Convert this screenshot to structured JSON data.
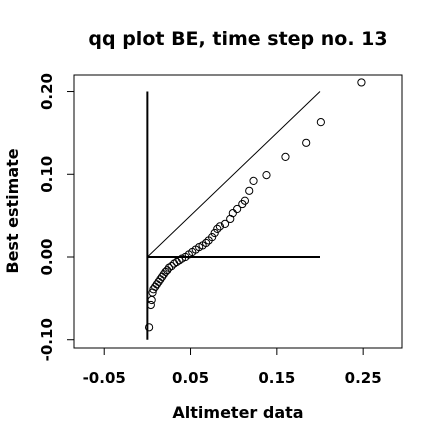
{
  "chart_data": {
    "type": "scatter",
    "title": "qq plot BE, time step no. 13",
    "xlabel": "Altimeter data",
    "ylabel": "Best estimate",
    "xlim": [
      -0.085,
      0.295
    ],
    "ylim": [
      -0.11,
      0.22
    ],
    "x_ticks": [
      -0.05,
      0.05,
      0.15,
      0.25
    ],
    "x_tick_labels": [
      "-0.05",
      "0.05",
      "0.15",
      "0.25"
    ],
    "y_ticks": [
      -0.1,
      0.0,
      0.1,
      0.2
    ],
    "y_tick_labels": [
      "-0.10",
      "0.00",
      "0.10",
      "0.20"
    ],
    "grid": false,
    "marker": "open-circle",
    "reference_lines": [
      {
        "from": [
          0.0,
          0.0
        ],
        "to": [
          0.2,
          0.2
        ]
      },
      {
        "from": [
          0.0,
          0.0
        ],
        "to": [
          0.2,
          0.0
        ]
      },
      {
        "from": [
          0.0,
          -0.1
        ],
        "to": [
          0.0,
          0.2
        ]
      }
    ],
    "points": [
      {
        "x": 0.002,
        "y": -0.085
      },
      {
        "x": 0.004,
        "y": -0.058
      },
      {
        "x": 0.005,
        "y": -0.052
      },
      {
        "x": 0.006,
        "y": -0.043
      },
      {
        "x": 0.007,
        "y": -0.039
      },
      {
        "x": 0.009,
        "y": -0.036
      },
      {
        "x": 0.011,
        "y": -0.033
      },
      {
        "x": 0.013,
        "y": -0.03
      },
      {
        "x": 0.015,
        "y": -0.027
      },
      {
        "x": 0.017,
        "y": -0.024
      },
      {
        "x": 0.019,
        "y": -0.021
      },
      {
        "x": 0.021,
        "y": -0.018
      },
      {
        "x": 0.023,
        "y": -0.016
      },
      {
        "x": 0.025,
        "y": -0.013
      },
      {
        "x": 0.028,
        "y": -0.011
      },
      {
        "x": 0.031,
        "y": -0.008
      },
      {
        "x": 0.034,
        "y": -0.006
      },
      {
        "x": 0.037,
        "y": -0.004
      },
      {
        "x": 0.04,
        "y": -0.002
      },
      {
        "x": 0.044,
        "y": 0.0
      },
      {
        "x": 0.048,
        "y": 0.003
      },
      {
        "x": 0.052,
        "y": 0.006
      },
      {
        "x": 0.056,
        "y": 0.009
      },
      {
        "x": 0.06,
        "y": 0.012
      },
      {
        "x": 0.064,
        "y": 0.014
      },
      {
        "x": 0.068,
        "y": 0.017
      },
      {
        "x": 0.071,
        "y": 0.02
      },
      {
        "x": 0.075,
        "y": 0.024
      },
      {
        "x": 0.078,
        "y": 0.029
      },
      {
        "x": 0.081,
        "y": 0.034
      },
      {
        "x": 0.084,
        "y": 0.037
      },
      {
        "x": 0.09,
        "y": 0.04
      },
      {
        "x": 0.096,
        "y": 0.046
      },
      {
        "x": 0.099,
        "y": 0.053
      },
      {
        "x": 0.104,
        "y": 0.058
      },
      {
        "x": 0.11,
        "y": 0.064
      },
      {
        "x": 0.113,
        "y": 0.068
      },
      {
        "x": 0.118,
        "y": 0.08
      },
      {
        "x": 0.123,
        "y": 0.092
      },
      {
        "x": 0.138,
        "y": 0.099
      },
      {
        "x": 0.16,
        "y": 0.121
      },
      {
        "x": 0.184,
        "y": 0.138
      },
      {
        "x": 0.201,
        "y": 0.163
      },
      {
        "x": 0.248,
        "y": 0.211
      }
    ]
  }
}
